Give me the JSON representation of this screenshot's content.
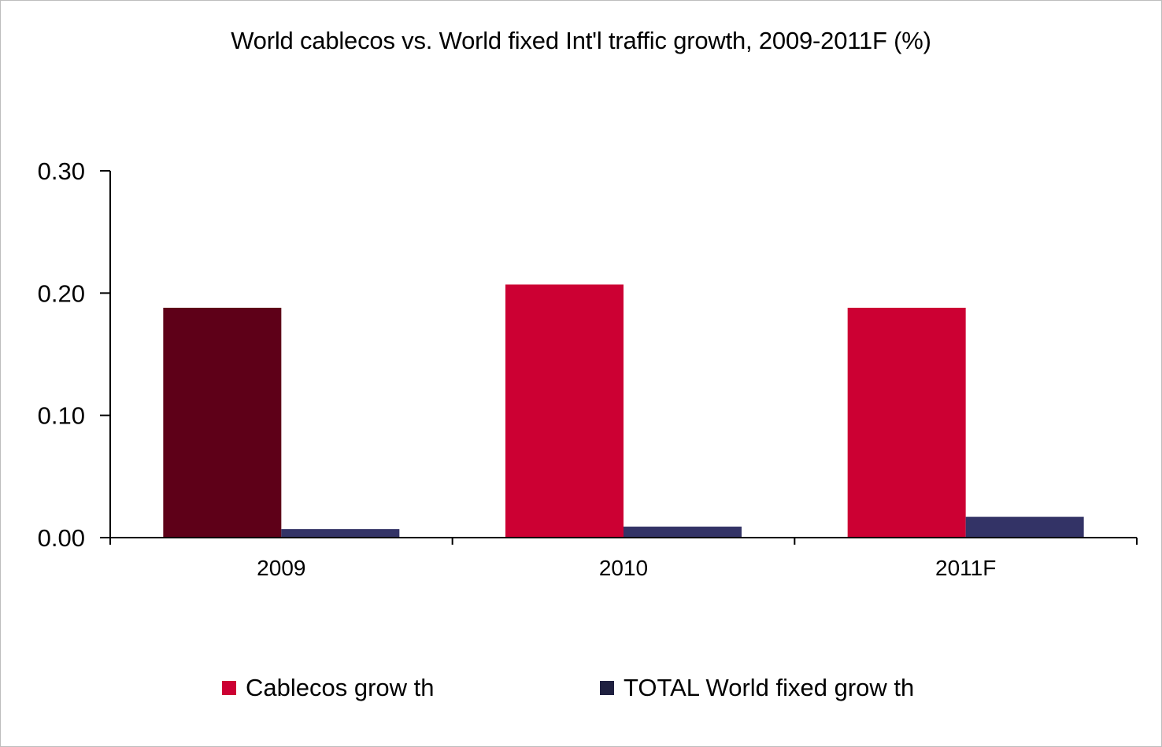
{
  "chart_data": {
    "type": "bar",
    "title": "World cablecos vs. World fixed Int'l traffic growth, 2009-2011F (%)",
    "xlabel": "",
    "ylabel": "",
    "categories": [
      "2009",
      "2010",
      "2011F"
    ],
    "ylim": [
      0,
      0.3
    ],
    "yticks": [
      "0.00",
      "0.10",
      "0.20",
      "0.30"
    ],
    "grid": false,
    "legend_position": "bottom",
    "series": [
      {
        "name": "Cablecos growth",
        "color": "#cc0033",
        "point_colors": [
          "#5e0018",
          "#cc0033",
          "#cc0033"
        ],
        "values": [
          0.188,
          0.207,
          0.188
        ]
      },
      {
        "name": "TOTAL World fixed grow th",
        "color": "#333366",
        "values": [
          0.007,
          0.009,
          0.017
        ]
      }
    ]
  },
  "legend": {
    "items": [
      {
        "label": "Cablecos grow th",
        "color": "#cc0033"
      },
      {
        "label": "TOTAL World fixed grow th",
        "color": "#1f2040"
      }
    ]
  }
}
